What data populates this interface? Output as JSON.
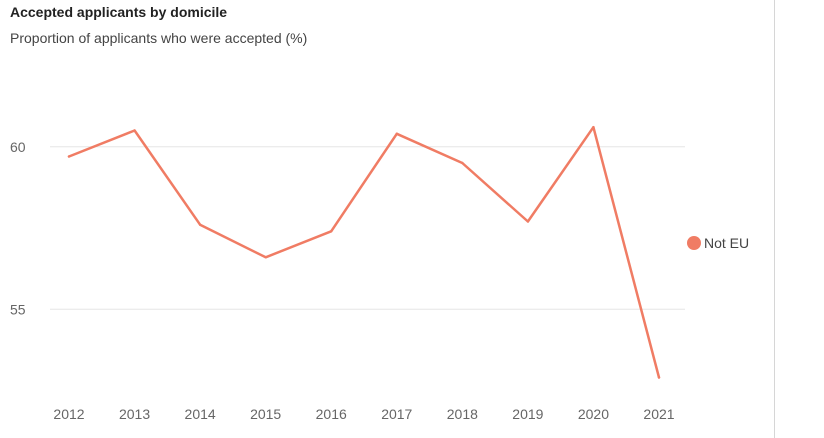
{
  "chart_data": {
    "type": "line",
    "title": "Accepted applicants by domicile",
    "subtitle": "Proportion of applicants who were accepted (%)",
    "x": [
      "2012",
      "2013",
      "2014",
      "2015",
      "2016",
      "2017",
      "2018",
      "2019",
      "2020",
      "2021"
    ],
    "series": [
      {
        "name": "Not EU",
        "color": "#f07c64",
        "values": [
          59.7,
          60.5,
          57.6,
          56.6,
          57.4,
          60.4,
          59.5,
          57.7,
          60.6,
          52.9
        ]
      }
    ],
    "yticks": [
      55,
      60
    ],
    "ylim": [
      52.7,
      62.3
    ],
    "grid": true,
    "legend": "right"
  }
}
